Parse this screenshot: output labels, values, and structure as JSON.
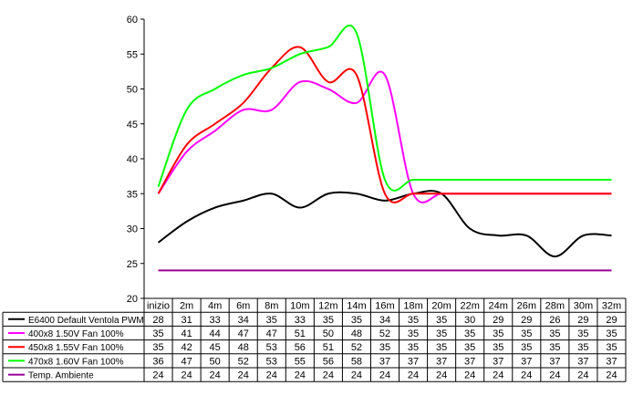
{
  "chart_data": {
    "type": "line",
    "title": "",
    "xlabel": "",
    "ylabel": "",
    "ylim": [
      20,
      60
    ],
    "yticks": [
      "20",
      "25",
      "30",
      "35",
      "40",
      "45",
      "50",
      "55",
      "60"
    ],
    "categories": [
      "inizio",
      "2m",
      "4m",
      "6m",
      "8m",
      "10m",
      "12m",
      "14m",
      "16m",
      "18m",
      "20m",
      "22m",
      "24m",
      "26m",
      "28m",
      "30m",
      "32m"
    ],
    "grid": false,
    "legend": "data-table",
    "series": [
      {
        "name": "E6400 Default Ventola PWM",
        "color": "#000000",
        "values": [
          28,
          31,
          33,
          34,
          35,
          33,
          35,
          35,
          34,
          35,
          35,
          30,
          29,
          29,
          26,
          29,
          29
        ]
      },
      {
        "name": "400x8 1.50V Fan 100%",
        "color": "#ff00ff",
        "values": [
          35,
          41,
          44,
          47,
          47,
          51,
          50,
          48,
          52,
          35,
          35,
          35,
          35,
          35,
          35,
          35,
          35
        ]
      },
      {
        "name": "450x8 1.55V Fan 100%",
        "color": "#ff0000",
        "values": [
          35,
          42,
          45,
          48,
          53,
          56,
          51,
          52,
          35,
          35,
          35,
          35,
          35,
          35,
          35,
          35,
          35
        ]
      },
      {
        "name": "470x8 1.60V Fan 100%",
        "color": "#00ff00",
        "values": [
          36,
          47,
          50,
          52,
          53,
          55,
          56,
          58,
          37,
          37,
          37,
          37,
          37,
          37,
          37,
          37,
          37
        ]
      },
      {
        "name": "Temp. Ambiente",
        "color": "#990099",
        "values": [
          24,
          24,
          24,
          24,
          24,
          24,
          24,
          24,
          24,
          24,
          24,
          24,
          24,
          24,
          24,
          24,
          24
        ]
      }
    ]
  }
}
